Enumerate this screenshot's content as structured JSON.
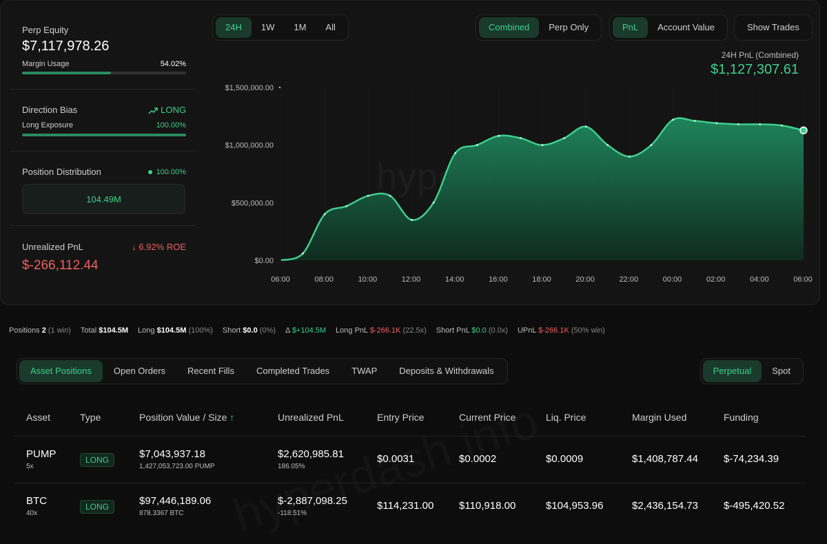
{
  "stats": {
    "perp_equity_label": "Perp Equity",
    "perp_equity_value": "$7,117,978.26",
    "margin_usage_label": "Margin Usage",
    "margin_usage_value": "54.02%",
    "margin_usage_fraction": 0.5402,
    "direction_bias_label": "Direction Bias",
    "direction_bias_value": "LONG",
    "long_exposure_label": "Long Exposure",
    "long_exposure_value": "100.00%",
    "long_exposure_fraction": 1.0,
    "position_distribution_label": "Position Distribution",
    "position_distribution_value": "100.00%",
    "position_distribution_amount": "104.49M",
    "unrealized_pnl_label": "Unrealized PnL",
    "unrealized_roe": "6.92% ROE",
    "unrealized_pnl_value": "$-266,112.44"
  },
  "timeframes": [
    "24H",
    "1W",
    "1M",
    "All"
  ],
  "timeframe_selected": "24H",
  "modes": [
    "Combined",
    "Perp Only"
  ],
  "mode_selected": "Combined",
  "metrics": [
    "PnL",
    "Account Value"
  ],
  "metric_selected": "PnL",
  "show_trades_label": "Show Trades",
  "pnl_header": {
    "label": "24H PnL (Combined)",
    "value": "$1,127,307.61"
  },
  "watermark": "hyperdash.info",
  "chart_data": {
    "type": "area",
    "title": "24H PnL (Combined)",
    "x": [
      "06:00",
      "07:00",
      "08:00",
      "09:00",
      "10:00",
      "11:00",
      "12:00",
      "13:00",
      "14:00",
      "15:00",
      "16:00",
      "17:00",
      "18:00",
      "19:00",
      "20:00",
      "21:00",
      "22:00",
      "23:00",
      "00:00",
      "01:00",
      "02:00",
      "03:00",
      "04:00",
      "05:00",
      "06:00"
    ],
    "x_tick_labels": [
      "06:00",
      "08:00",
      "10:00",
      "12:00",
      "14:00",
      "16:00",
      "18:00",
      "20:00",
      "22:00",
      "00:00",
      "02:00",
      "04:00",
      "06:00"
    ],
    "values": [
      0,
      60000,
      400000,
      470000,
      560000,
      560000,
      350000,
      500000,
      930000,
      1000000,
      1080000,
      1060000,
      1000000,
      1060000,
      1160000,
      1000000,
      900000,
      1000000,
      1220000,
      1210000,
      1190000,
      1180000,
      1180000,
      1170000,
      1127307.61
    ],
    "y_tick_labels": [
      "$0.00",
      "$500,000.00",
      "$1,000,000.00",
      "$1,500,000.00"
    ],
    "ylim": [
      0,
      1500000
    ],
    "xlabel": "",
    "ylabel": "",
    "color": "#3ecf8e"
  },
  "summary": {
    "positions_label": "Positions",
    "positions_count": "2",
    "positions_win": "(1 win)",
    "total_label": "Total",
    "total_value": "$104.5M",
    "long_label": "Long",
    "long_value": "$104.5M",
    "long_pct": "(100%)",
    "short_label": "Short",
    "short_value": "$0.0",
    "short_pct": "(0%)",
    "delta_label": "Δ",
    "delta_value": "$+104.5M",
    "long_pnl_label": "Long PnL",
    "long_pnl_value": "$-266.1K",
    "long_pnl_lev": "(22.5x)",
    "short_pnl_label": "Short PnL",
    "short_pnl_value": "$0.0",
    "short_pnl_lev": "(0.0x)",
    "upnl_label": "UPnL",
    "upnl_value": "$-266.1K",
    "upnl_win": "(50% win)"
  },
  "tabs": [
    "Asset Positions",
    "Open Orders",
    "Recent Fills",
    "Completed Trades",
    "TWAP",
    "Deposits & Withdrawals"
  ],
  "tab_selected": "Asset Positions",
  "markets": [
    "Perpetual",
    "Spot"
  ],
  "market_selected": "Perpetual",
  "table": {
    "headers": [
      "Asset",
      "Type",
      "Position Value / Size",
      "Unrealized PnL",
      "Entry Price",
      "Current Price",
      "Liq. Price",
      "Margin Used",
      "Funding"
    ],
    "sort_indicator": "↑",
    "rows": [
      {
        "asset": "PUMP",
        "leverage": "5x",
        "type": "LONG",
        "position_value": "$7,043,937.18",
        "size": "1,427,053,723.00 PUMP",
        "upnl": "$2,620,985.81",
        "upnl_pct": "186.05%",
        "entry": "$0.0031",
        "current": "$0.0002",
        "liq": "$0.0009",
        "margin": "$1,408,787.44",
        "funding": "$-74,234.39"
      },
      {
        "asset": "BTC",
        "leverage": "40x",
        "type": "LONG",
        "position_value": "$97,446,189.06",
        "size": "878.3367 BTC",
        "upnl": "$-2,887,098.25",
        "upnl_pct": "-118.51%",
        "entry": "$114,231.00",
        "current": "$110,918.00",
        "liq": "$104,953.96",
        "margin": "$2,436,154.73",
        "funding": "$-495,420.52"
      }
    ]
  }
}
